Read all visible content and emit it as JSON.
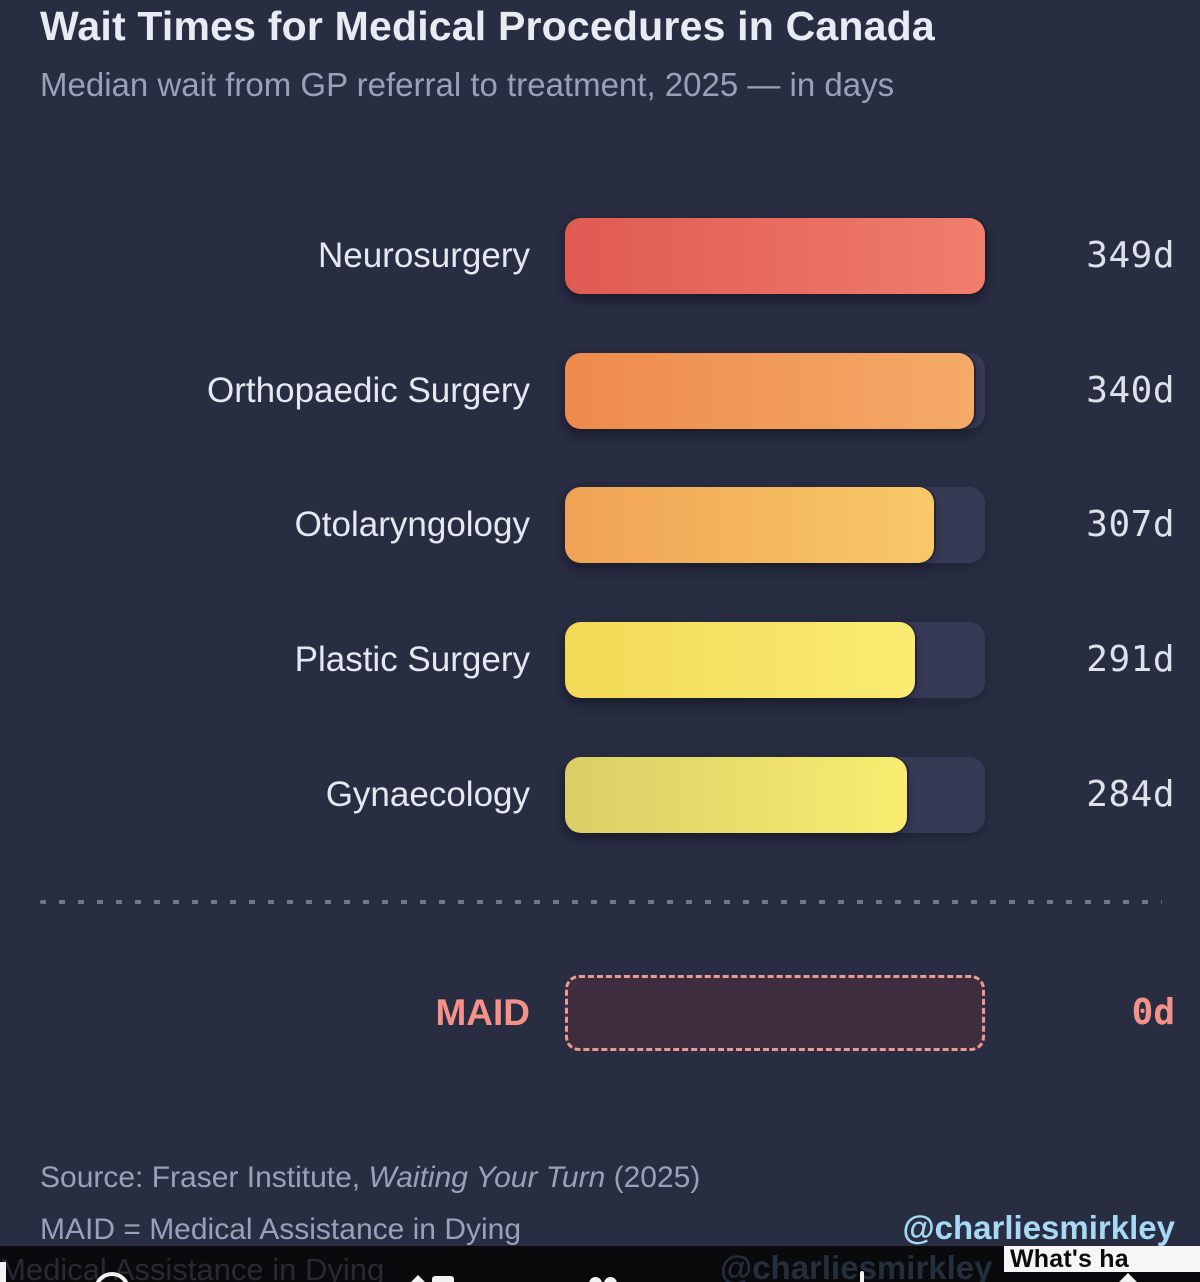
{
  "chart": {
    "title": "Wait Times for Medical Procedures in Canada",
    "subtitle": "Median wait from GP referral to treatment, 2025 — in days",
    "background": "#292D42",
    "track_color": "#363A55",
    "max_value": 349,
    "rows": [
      {
        "label": "Neurosurgery",
        "value": 349,
        "value_label": "349d",
        "color_start": "#E05A52",
        "color_end": "#F07E6B"
      },
      {
        "label": "Orthopaedic Surgery",
        "value": 340,
        "value_label": "340d",
        "color_start": "#EE8A4C",
        "color_end": "#F5AA67"
      },
      {
        "label": "Otolaryngology",
        "value": 307,
        "value_label": "307d",
        "color_start": "#F0A254",
        "color_end": "#F8C968"
      },
      {
        "label": "Plastic Surgery",
        "value": 291,
        "value_label": "291d",
        "color_start": "#F3D957",
        "color_end": "#FAEC72"
      },
      {
        "label": "Gynaecology",
        "value": 284,
        "value_label": "284d",
        "color_start": "#DCCE67",
        "color_end": "#F8ED70"
      }
    ],
    "maid_row": {
      "label": "MAID",
      "value": 0,
      "value_label": "0d",
      "accent": "#F4928A",
      "box_fill": "#3D2D3E",
      "box_border": "#E79B93"
    }
  },
  "footer": {
    "source_prefix": "Source: Fraser Institute, ",
    "source_italic": "Waiting Your Turn",
    "source_suffix": " (2025)",
    "maid_note": "MAID = Medical Assistance in Dying",
    "handle": "@charliesmirkley",
    "handle_color": "#A6D9F4"
  },
  "overlay": {
    "ghost_left": "Medical Assistance in Dying",
    "ghost_right": "@charliesmirkley",
    "popup_text": "What's ha"
  },
  "chart_data": {
    "type": "bar",
    "orientation": "horizontal",
    "title": "Wait Times for Medical Procedures in Canada",
    "subtitle": "Median wait from GP referral to treatment, 2025 — in days",
    "categories": [
      "Neurosurgery",
      "Orthopaedic Surgery",
      "Otolaryngology",
      "Plastic Surgery",
      "Gynaecology",
      "MAID"
    ],
    "values": [
      349,
      340,
      307,
      291,
      284,
      0
    ],
    "value_labels": [
      "349d",
      "340d",
      "307d",
      "291d",
      "284d",
      "0d"
    ],
    "unit": "days",
    "xlim": [
      0,
      349
    ],
    "grid": false,
    "legend": false,
    "source": "Fraser Institute, Waiting Your Turn (2025)",
    "note": "MAID = Medical Assistance in Dying",
    "bar_colors": [
      "#E8695E",
      "#F19A59",
      "#F4B55E",
      "#F6E265",
      "#EDDF6C",
      "#3D2D3E"
    ]
  }
}
